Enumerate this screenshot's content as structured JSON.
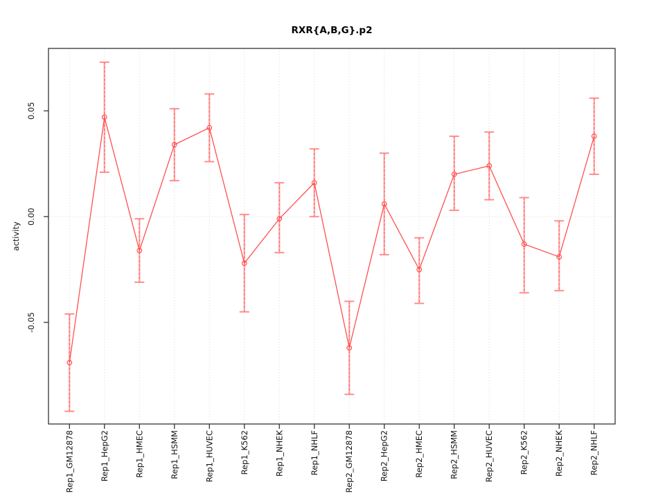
{
  "chart_data": {
    "type": "line",
    "title": "RXR{A,B,G}.p2",
    "xlabel": "",
    "ylabel": "activity",
    "categories": [
      "Rep1_GM12878",
      "Rep1_HepG2",
      "Rep1_HMEC",
      "Rep1_HSMM",
      "Rep1_HUVEC",
      "Rep1_K562",
      "Rep1_NHEK",
      "Rep1_NHLF",
      "Rep2_GM12878",
      "Rep2_HepG2",
      "Rep2_HMEC",
      "Rep2_HSMM",
      "Rep2_HUVEC",
      "Rep2_K562",
      "Rep2_NHEK",
      "Rep2_NHLF"
    ],
    "series": [
      {
        "name": "activity",
        "values": [
          -0.069,
          0.047,
          -0.016,
          0.034,
          0.042,
          -0.022,
          -0.001,
          0.016,
          -0.062,
          0.006,
          -0.025,
          0.02,
          0.024,
          -0.013,
          -0.019,
          0.038
        ],
        "error_low": [
          -0.092,
          0.021,
          -0.031,
          0.017,
          0.026,
          -0.045,
          -0.017,
          0.0,
          -0.084,
          -0.018,
          -0.041,
          0.003,
          0.008,
          -0.036,
          -0.035,
          0.02
        ],
        "error_high": [
          -0.046,
          0.073,
          -0.001,
          0.051,
          0.058,
          0.001,
          0.016,
          0.032,
          -0.04,
          0.03,
          -0.01,
          0.038,
          0.04,
          0.009,
          -0.002,
          0.056
        ]
      }
    ],
    "yticks": [
      -0.05,
      0,
      0.05
    ],
    "ytick_labels": [
      "-0.05",
      "0.00",
      "0.05"
    ],
    "ylim": [
      -0.098,
      0.0795
    ],
    "grid": {
      "horizontal": "dotted line at y=0 only",
      "vertical": "dotted line at every category"
    },
    "legend": null,
    "marker": "open-circle",
    "colors": {
      "line": "#ff4f4f",
      "marker": "#ff4f4f",
      "error_bar": "#ffabab",
      "error_bar_dash": "#ff6060",
      "error_cap": "#ff8c8c",
      "gridline": "#d9d9d9",
      "axis": "#333333",
      "text": "#111111",
      "background": "#ffffff"
    }
  }
}
